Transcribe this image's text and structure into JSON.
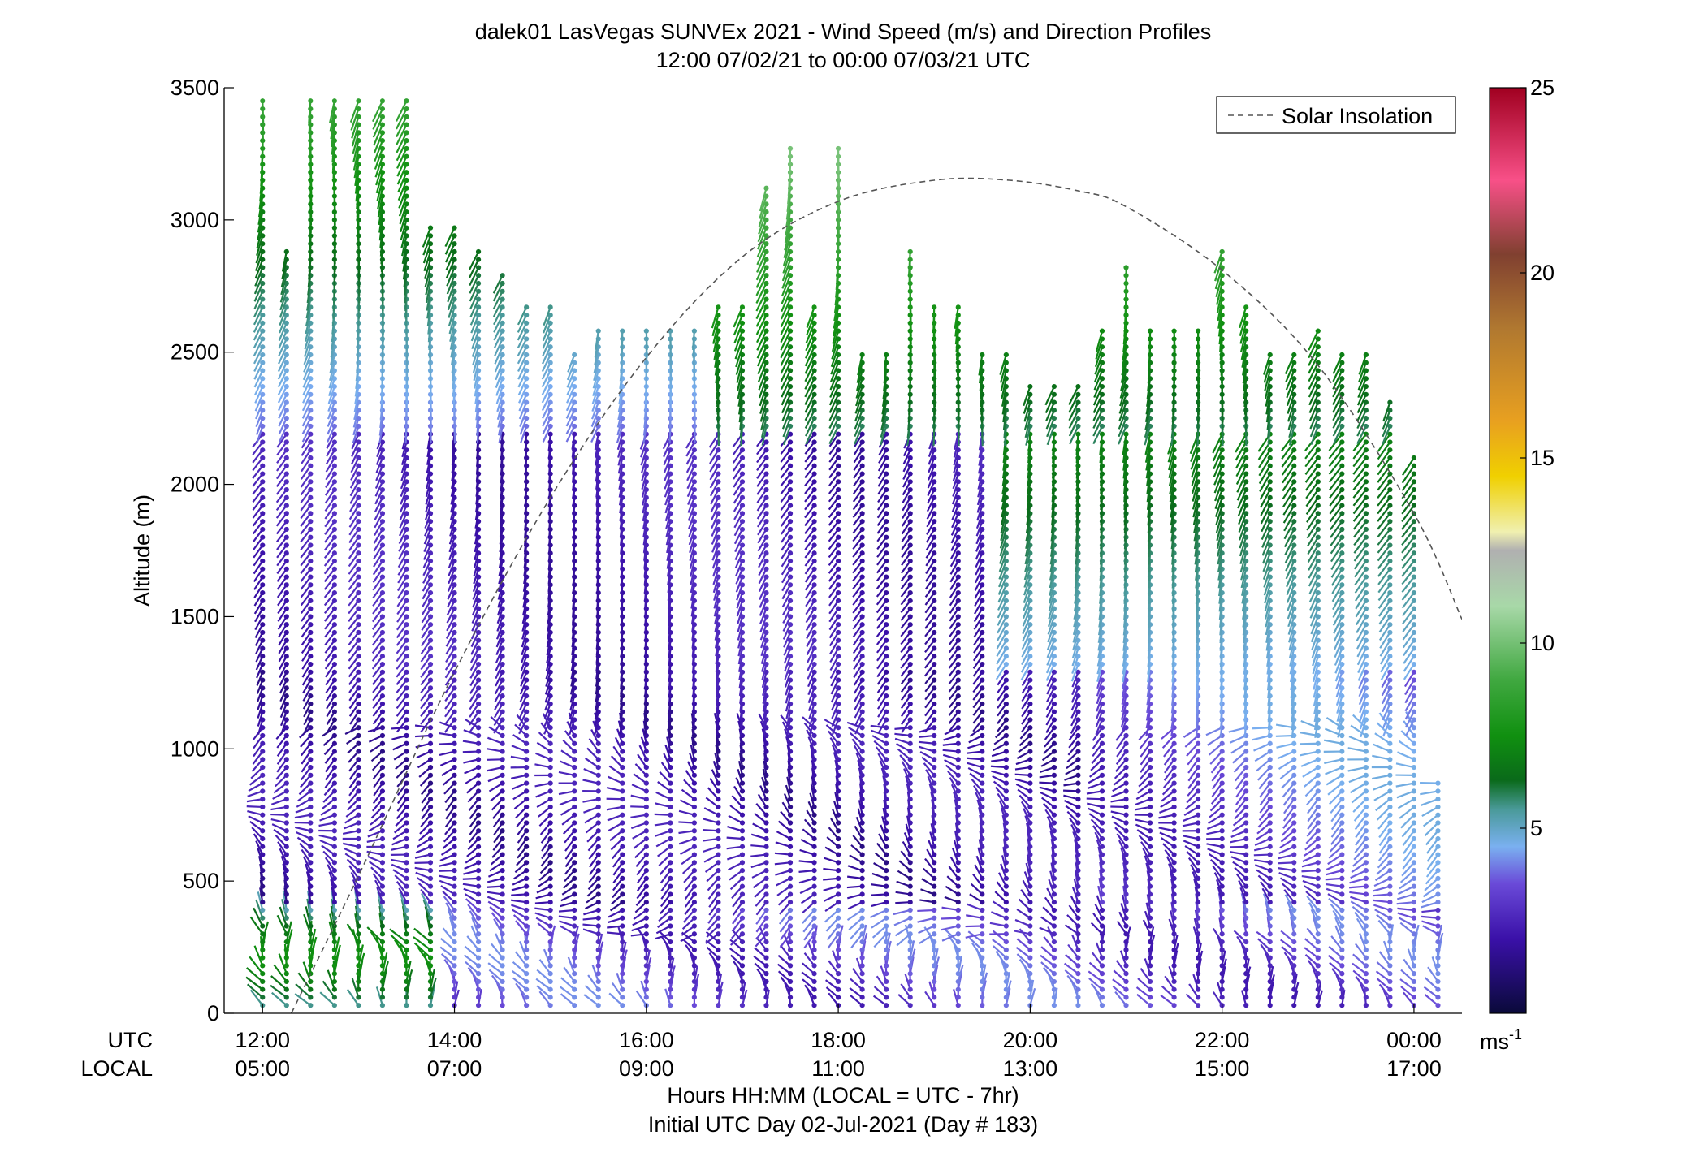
{
  "chart_data": {
    "type": "scatter",
    "title": "dalek01 LasVegas SUNVEx 2021 - Wind Speed (m/s) and Direction Profiles",
    "subtitle": "12:00 07/02/21 to 00:00 07/03/21  UTC",
    "ylabel": "Altitude (m)",
    "xlabel": "Hours HH:MM  (LOCAL = UTC - 7hr)",
    "xlabel2": "Initial UTC Day 02-Jul-2021 (Day # 183)",
    "row_label_utc": "UTC",
    "row_label_local": "LOCAL",
    "ylim": [
      0,
      3500
    ],
    "xlim_hours": [
      11.6,
      24.5
    ],
    "y_ticks": [
      0,
      500,
      1000,
      1500,
      2000,
      2500,
      3000,
      3500
    ],
    "y_tick_labels": [
      "0",
      "500",
      "1000",
      "1500",
      "2000",
      "2500",
      "3000",
      "3500"
    ],
    "x_ticks_hours": [
      12,
      14,
      16,
      18,
      20,
      22,
      24
    ],
    "x_ticks_utc": [
      "12:00",
      "14:00",
      "16:00",
      "18:00",
      "20:00",
      "22:00",
      "00:00"
    ],
    "x_ticks_local": [
      "05:00",
      "07:00",
      "09:00",
      "11:00",
      "13:00",
      "15:00",
      "17:00"
    ],
    "legend": {
      "entry": "Solar Insolation",
      "location": "top-right",
      "style": "dashed",
      "color": "#555555"
    },
    "colorbar": {
      "min": 0,
      "max": 25,
      "ticks": [
        5,
        10,
        15,
        20,
        25
      ],
      "unit_base": "ms",
      "unit_exp": "-1",
      "stops": [
        {
          "v": 0,
          "c": "#0a0a3a"
        },
        {
          "v": 2,
          "c": "#3a10a8"
        },
        {
          "v": 3.5,
          "c": "#6a4ad8"
        },
        {
          "v": 4.5,
          "c": "#7ab0f0"
        },
        {
          "v": 5.5,
          "c": "#4a9a9a"
        },
        {
          "v": 6.3,
          "c": "#0a6a1a"
        },
        {
          "v": 7.5,
          "c": "#109010"
        },
        {
          "v": 9,
          "c": "#40a840"
        },
        {
          "v": 11,
          "c": "#a8d8a8"
        },
        {
          "v": 12.5,
          "c": "#b0b0b0"
        },
        {
          "v": 13,
          "c": "#f0f0b0"
        },
        {
          "v": 14.5,
          "c": "#f0d000"
        },
        {
          "v": 16,
          "c": "#e8a020"
        },
        {
          "v": 18.5,
          "c": "#b07830"
        },
        {
          "v": 20.5,
          "c": "#804030"
        },
        {
          "v": 22.5,
          "c": "#f85088"
        },
        {
          "v": 25,
          "c": "#a00020"
        }
      ]
    },
    "solar_insolation_curve": {
      "hours": [
        12.3,
        13.0,
        14.0,
        15.0,
        16.0,
        17.0,
        18.0,
        19.0,
        19.78,
        20.5,
        21.0,
        22.0,
        23.0,
        24.0,
        24.5
      ],
      "altitude_equiv": [
        0,
        520,
        1290,
        1950,
        2480,
        2860,
        3070,
        3150,
        3150,
        3110,
        3050,
        2810,
        2450,
        1890,
        1490
      ]
    },
    "profiles": [
      {
        "hour": 12.0,
        "top": 3470
      },
      {
        "hour": 12.25,
        "top": 2890
      },
      {
        "hour": 12.5,
        "top": 3470
      },
      {
        "hour": 12.75,
        "top": 3470
      },
      {
        "hour": 13.0,
        "top": 3470
      },
      {
        "hour": 13.25,
        "top": 3470
      },
      {
        "hour": 13.5,
        "top": 3470
      },
      {
        "hour": 13.75,
        "top": 2980
      },
      {
        "hour": 14.0,
        "top": 2980
      },
      {
        "hour": 14.25,
        "top": 2890
      },
      {
        "hour": 14.5,
        "top": 2810
      },
      {
        "hour": 14.75,
        "top": 2690
      },
      {
        "hour": 15.0,
        "top": 2690
      },
      {
        "hour": 15.25,
        "top": 2500
      },
      {
        "hour": 15.5,
        "top": 2600
      },
      {
        "hour": 15.75,
        "top": 2600
      },
      {
        "hour": 16.0,
        "top": 2600
      },
      {
        "hour": 16.25,
        "top": 2600
      },
      {
        "hour": 16.5,
        "top": 2600
      },
      {
        "hour": 16.75,
        "top": 2690
      },
      {
        "hour": 17.0,
        "top": 2690
      },
      {
        "hour": 17.25,
        "top": 3120
      },
      {
        "hour": 17.5,
        "top": 3270
      },
      {
        "hour": 17.75,
        "top": 2690
      },
      {
        "hour": 18.0,
        "top": 3270
      },
      {
        "hour": 18.25,
        "top": 2500
      },
      {
        "hour": 18.5,
        "top": 2500
      },
      {
        "hour": 18.75,
        "top": 2880
      },
      {
        "hour": 19.0,
        "top": 2690
      },
      {
        "hour": 19.25,
        "top": 2690
      },
      {
        "hour": 19.5,
        "top": 2500
      },
      {
        "hour": 19.75,
        "top": 2500
      },
      {
        "hour": 20.0,
        "top": 2390
      },
      {
        "hour": 20.25,
        "top": 2390
      },
      {
        "hour": 20.5,
        "top": 2390
      },
      {
        "hour": 20.75,
        "top": 2600
      },
      {
        "hour": 21.0,
        "top": 2820
      },
      {
        "hour": 21.25,
        "top": 2600
      },
      {
        "hour": 21.5,
        "top": 2600
      },
      {
        "hour": 21.75,
        "top": 2600
      },
      {
        "hour": 22.0,
        "top": 2880
      },
      {
        "hour": 22.25,
        "top": 2690
      },
      {
        "hour": 22.5,
        "top": 2500
      },
      {
        "hour": 22.75,
        "top": 2500
      },
      {
        "hour": 23.0,
        "top": 2600
      },
      {
        "hour": 23.25,
        "top": 2500
      },
      {
        "hour": 23.5,
        "top": 2500
      },
      {
        "hour": 23.75,
        "top": 2320
      },
      {
        "hour": 24.0,
        "top": 2100
      },
      {
        "hour": 24.25,
        "top": 870
      }
    ]
  }
}
